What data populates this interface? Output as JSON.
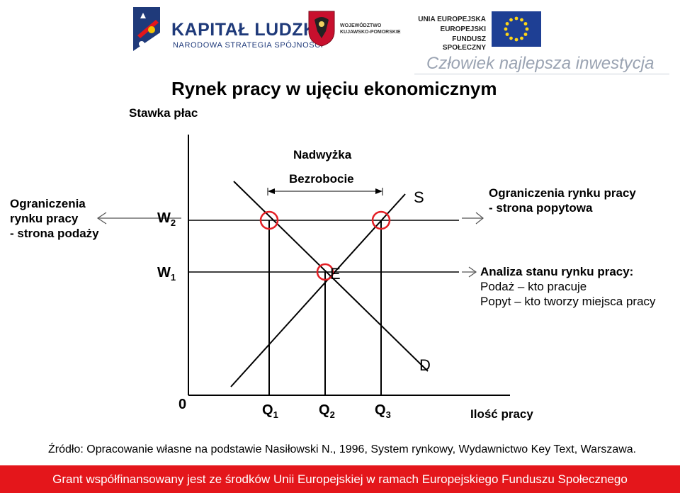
{
  "header": {
    "kapital_title": "KAPITAŁ LUDZKI",
    "kapital_subtitle": "NARODOWA STRATEGIA SPÓJNOŚCI",
    "woj_line1": "WOJEWÓDZTWO",
    "woj_line2": "KUJAWSKO-POMORSKIE",
    "ue_line1": "UNIA EUROPEJSKA",
    "ue_line2": "EUROPEJSKI",
    "ue_line3": "FUNDUSZ SPOŁECZNY",
    "tagline": "Człowiek najlepsza inwestycja"
  },
  "title": "Rynek pracy w ujęciu ekonomicznym",
  "diagram": {
    "y_axis_label": "Stawka płac",
    "x_axis_label": "Ilość pracy",
    "origin": "0",
    "w2": "W",
    "w2_sub": "2",
    "w1": "W",
    "w1_sub": "1",
    "q1": "Q",
    "q1_sub": "1",
    "q2": "Q",
    "q2_sub": "2",
    "q3": "Q",
    "q3_sub": "3",
    "supply_label": "S",
    "demand_label": "D",
    "equilibrium_label": "E",
    "surplus_label": "Nadwyżka",
    "unemployment_label": "Bezrobocie",
    "left_note": [
      "Ograniczenia",
      "rynku pracy",
      "- strona podaży"
    ],
    "right_note": [
      "Ograniczenia rynku pracy",
      "- strona popytowa"
    ],
    "analysis_title": "Analiza stanu rynku pracy:",
    "analysis_line1": "Podaż – kto pracuje",
    "analysis_line2": "Popyt – kto tworzy miejsca pracy",
    "marker_color": "#e31e24"
  },
  "source": "Źródło: Opracowanie własne na podstawie Nasiłowski N., 1996, System rynkowy, Wydawnictwo Key Text, Warszawa.",
  "footer": "Grant współfinansowany jest ze środków Unii Europejskiej w ramach Europejskiego Funduszu Społecznego"
}
